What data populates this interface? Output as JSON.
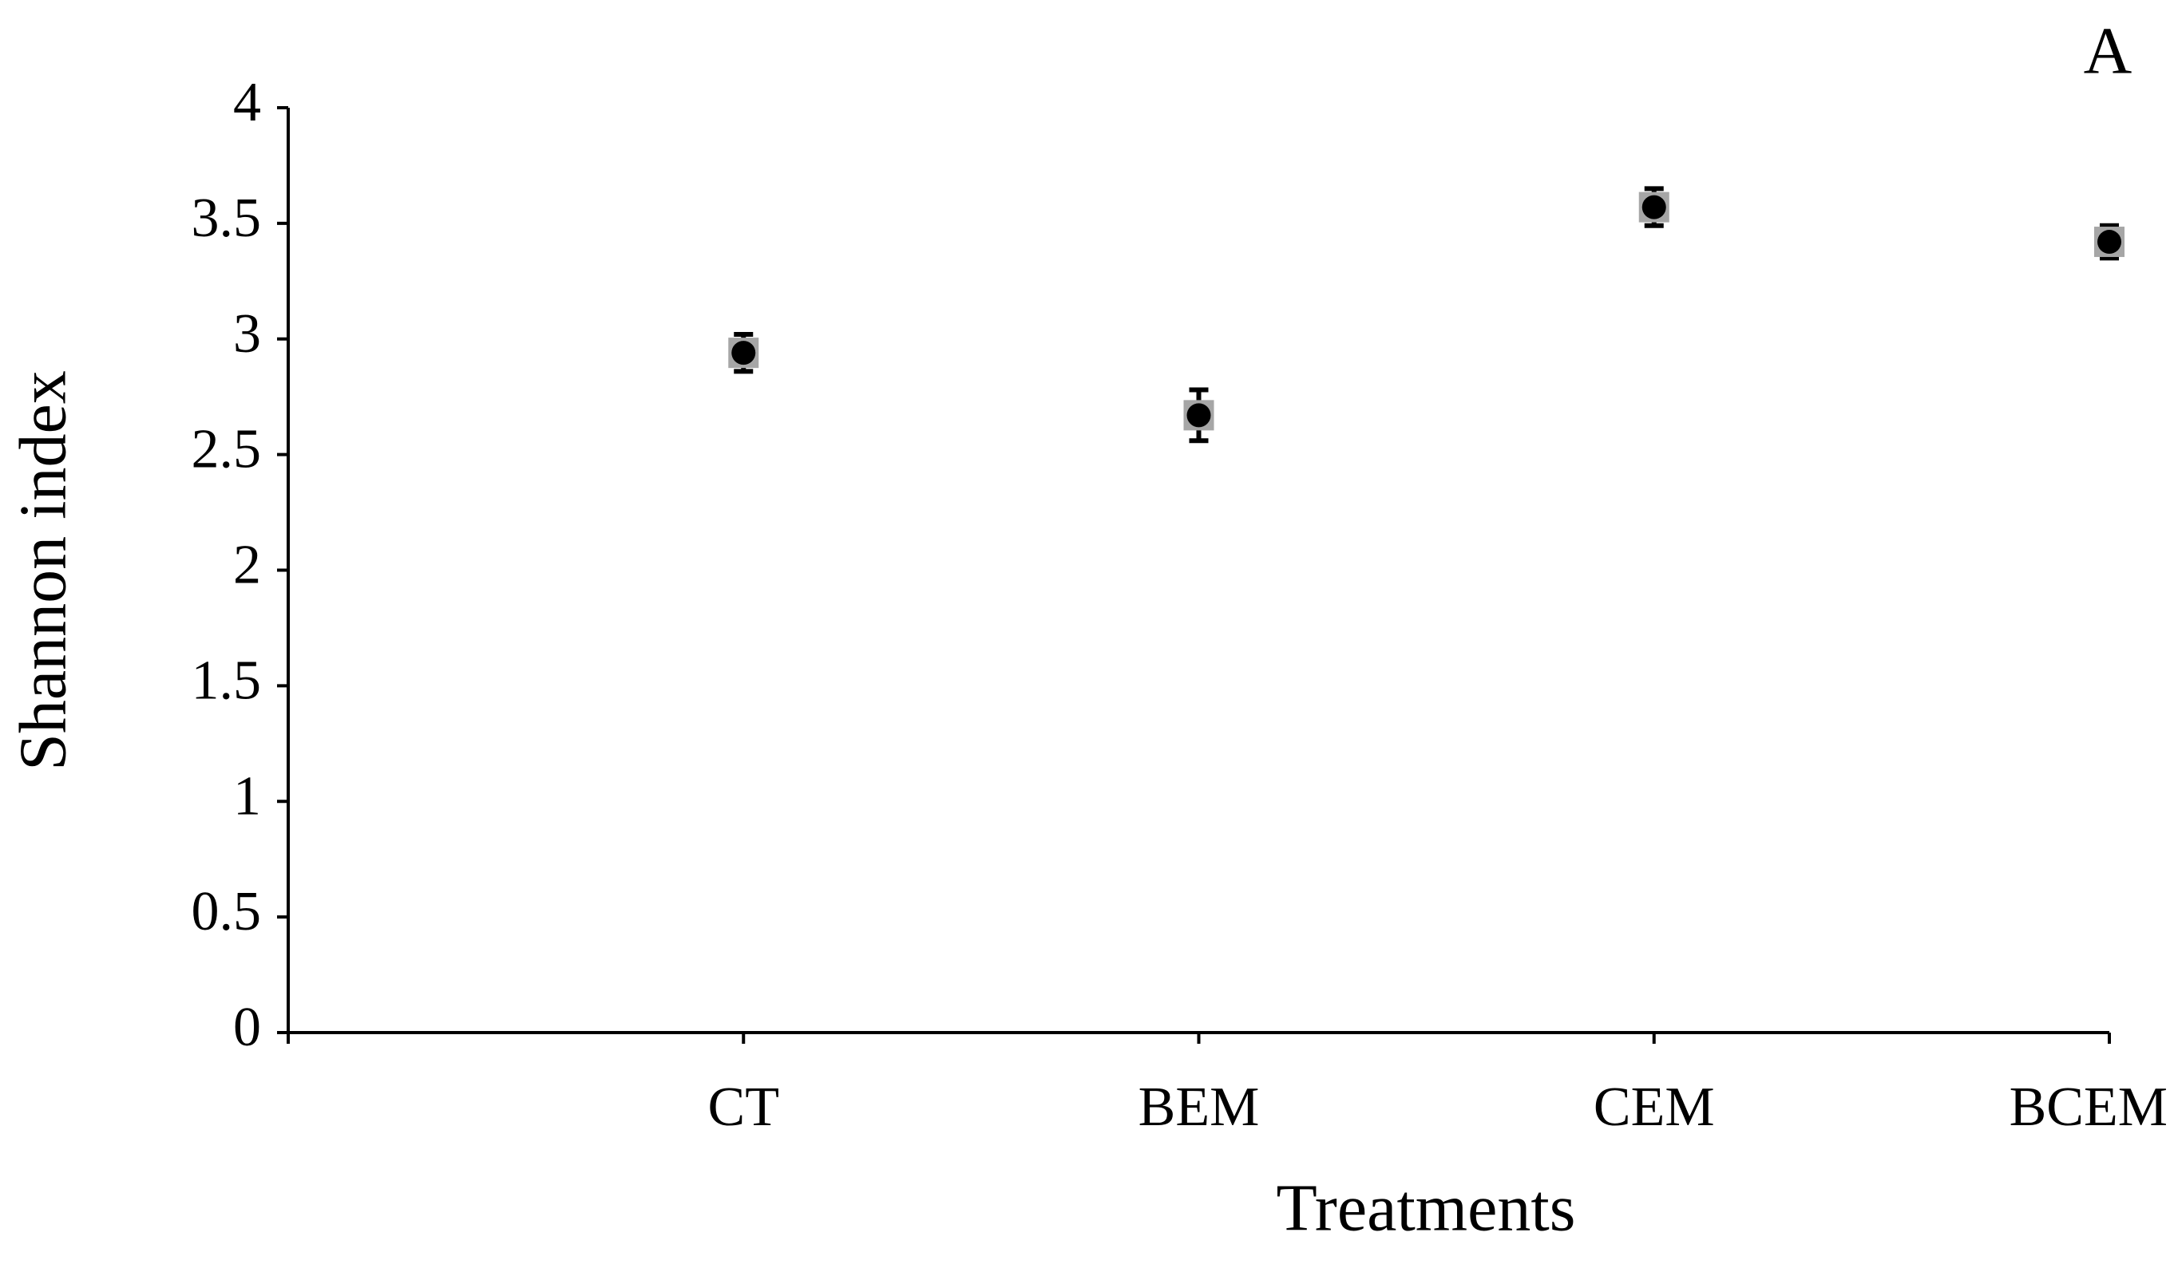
{
  "chart_data": {
    "type": "scatter",
    "panel_label": "A",
    "x_label": "Treatments",
    "y_label": "Shannon index",
    "categories": [
      "CT",
      "BEM",
      "CEM",
      "BCEM"
    ],
    "values": [
      2.94,
      2.67,
      3.57,
      3.42
    ],
    "errors": [
      0.08,
      0.11,
      0.08,
      0.07
    ],
    "color": "#000000",
    "marker_bg": "#a6a6a6",
    "ylim": [
      0,
      4
    ],
    "yticks": [
      0,
      0.5,
      1,
      1.5,
      2,
      2.5,
      3,
      3.5,
      4
    ],
    "grid": false
  }
}
